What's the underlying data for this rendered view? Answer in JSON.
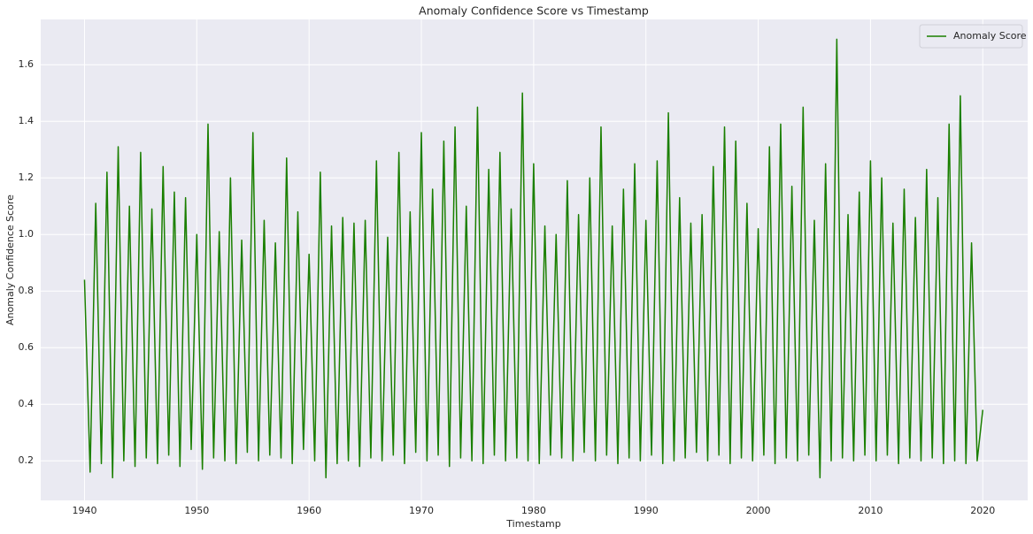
{
  "chart_data": {
    "type": "line",
    "title": "Anomaly Confidence Score vs Timestamp",
    "xlabel": "Timestamp",
    "ylabel": "Anomaly Confidence Score",
    "legend": "upper right",
    "grid": true,
    "xlim": [
      1936.1,
      2024.0
    ],
    "ylim": [
      0.06,
      1.76
    ],
    "xticks": [
      1940,
      1950,
      1960,
      1970,
      1980,
      1990,
      2000,
      2010,
      2020
    ],
    "yticks": [
      0.2,
      0.4,
      0.6,
      0.8,
      {
        "value": 1,
        "label": "1.0"
      },
      1.2,
      1.4,
      1.6
    ],
    "x": [
      1940,
      1940.5,
      1941,
      1941.5,
      1942,
      1942.5,
      1943,
      1943.5,
      1944,
      1944.5,
      1945,
      1945.5,
      1946,
      1946.5,
      1947,
      1947.5,
      1948,
      1948.5,
      1949,
      1949.5,
      1950,
      1950.5,
      1951,
      1951.5,
      1952,
      1952.5,
      1953,
      1953.5,
      1954,
      1954.5,
      1955,
      1955.5,
      1956,
      1956.5,
      1957,
      1957.5,
      1958,
      1958.5,
      1959,
      1959.5,
      1960,
      1960.5,
      1961,
      1961.5,
      1962,
      1962.5,
      1963,
      1963.5,
      1964,
      1964.5,
      1965,
      1965.5,
      1966,
      1966.5,
      1967,
      1967.5,
      1968,
      1968.5,
      1969,
      1969.5,
      1970,
      1970.5,
      1971,
      1971.5,
      1972,
      1972.5,
      1973,
      1973.5,
      1974,
      1974.5,
      1975,
      1975.5,
      1976,
      1976.5,
      1977,
      1977.5,
      1978,
      1978.5,
      1979,
      1979.5,
      1980,
      1980.5,
      1981,
      1981.5,
      1982,
      1982.5,
      1983,
      1983.5,
      1984,
      1984.5,
      1985,
      1985.5,
      1986,
      1986.5,
      1987,
      1987.5,
      1988,
      1988.5,
      1989,
      1989.5,
      1990,
      1990.5,
      1991,
      1991.5,
      1992,
      1992.5,
      1993,
      1993.5,
      1994,
      1994.5,
      1995,
      1995.5,
      1996,
      1996.5,
      1997,
      1997.5,
      1998,
      1998.5,
      1999,
      1999.5,
      2000,
      2000.5,
      2001,
      2001.5,
      2002,
      2002.5,
      2003,
      2003.5,
      2004,
      2004.5,
      2005,
      2005.5,
      2006,
      2006.5,
      2007,
      2007.5,
      2008,
      2008.5,
      2009,
      2009.5,
      2010,
      2010.5,
      2011,
      2011.5,
      2012,
      2012.5,
      2013,
      2013.5,
      2014,
      2014.5,
      2015,
      2015.5,
      2016,
      2016.5,
      2017,
      2017.5,
      2018,
      2018.5,
      2019,
      2019.5,
      2020
    ],
    "series": [
      {
        "name": "Anomaly Score",
        "color": "#1a7f00",
        "values": [
          0.84,
          0.16,
          1.11,
          0.19,
          1.22,
          0.14,
          1.31,
          0.2,
          1.1,
          0.18,
          1.29,
          0.21,
          1.09,
          0.19,
          1.24,
          0.22,
          1.15,
          0.18,
          1.13,
          0.24,
          1.0,
          0.17,
          1.39,
          0.21,
          1.01,
          0.2,
          1.2,
          0.19,
          0.98,
          0.23,
          1.36,
          0.2,
          1.05,
          0.22,
          0.97,
          0.21,
          1.27,
          0.19,
          1.08,
          0.24,
          0.93,
          0.2,
          1.22,
          0.14,
          1.03,
          0.19,
          1.06,
          0.2,
          1.04,
          0.18,
          1.05,
          0.21,
          1.26,
          0.2,
          0.99,
          0.22,
          1.29,
          0.19,
          1.08,
          0.23,
          1.36,
          0.2,
          1.16,
          0.22,
          1.33,
          0.18,
          1.38,
          0.21,
          1.1,
          0.2,
          1.45,
          0.19,
          1.23,
          0.22,
          1.29,
          0.2,
          1.09,
          0.21,
          1.5,
          0.2,
          1.25,
          0.19,
          1.03,
          0.22,
          1.0,
          0.21,
          1.19,
          0.2,
          1.07,
          0.23,
          1.2,
          0.2,
          1.38,
          0.22,
          1.03,
          0.19,
          1.16,
          0.21,
          1.25,
          0.2,
          1.05,
          0.22,
          1.26,
          0.19,
          1.43,
          0.2,
          1.13,
          0.21,
          1.04,
          0.23,
          1.07,
          0.2,
          1.24,
          0.22,
          1.38,
          0.19,
          1.33,
          0.21,
          1.11,
          0.2,
          1.02,
          0.22,
          1.31,
          0.19,
          1.39,
          0.21,
          1.17,
          0.2,
          1.45,
          0.22,
          1.05,
          0.14,
          1.25,
          0.2,
          1.69,
          0.21,
          1.07,
          0.2,
          1.15,
          0.22,
          1.26,
          0.2,
          1.2,
          0.22,
          1.04,
          0.19,
          1.16,
          0.21,
          1.06,
          0.2,
          1.23,
          0.21,
          1.13,
          0.19,
          1.39,
          0.2,
          1.49,
          0.19,
          0.97,
          0.2,
          0.38
        ]
      }
    ]
  }
}
